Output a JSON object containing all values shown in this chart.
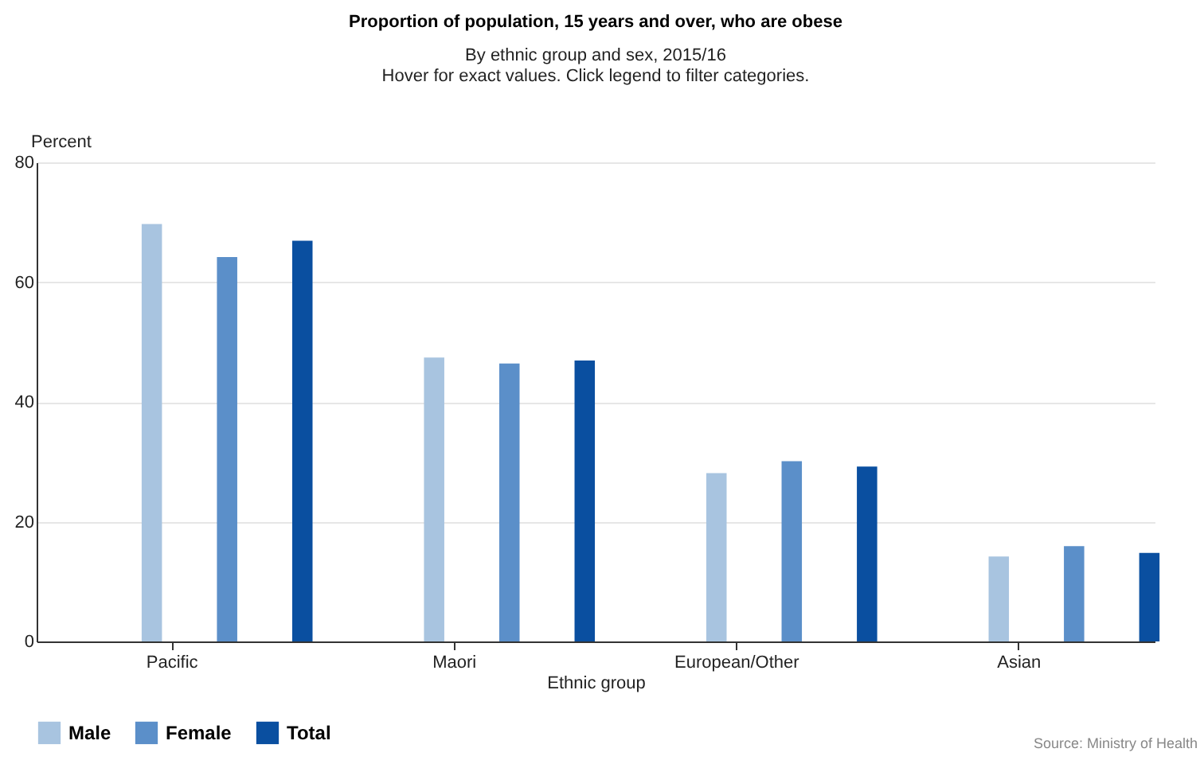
{
  "chart_data": {
    "type": "bar",
    "title": "Proportion of population, 15 years and over, who are obese",
    "subtitle": "By ethnic group and sex, 2015/16",
    "annotations": [
      "Hover for exact values. Click legend to filter categories.",
      "Source: Ministry of Health"
    ],
    "xlabel": "Ethnic group",
    "ylabel": "Percent",
    "categories": [
      "Pacific",
      "Maori",
      "European/Other",
      "Asian"
    ],
    "series": [
      {
        "name": "Male",
        "color": "#a8c4e0",
        "values": [
          69.7,
          47.4,
          28.1,
          14.2
        ]
      },
      {
        "name": "Female",
        "color": "#5b8fc9",
        "values": [
          64.2,
          46.4,
          30.1,
          15.9
        ]
      },
      {
        "name": "Total",
        "color": "#0a4fa0",
        "values": [
          66.9,
          46.9,
          29.2,
          14.8
        ]
      }
    ],
    "ylim": [
      0,
      80
    ],
    "yticks": [
      0,
      20,
      40,
      60,
      80
    ],
    "grid": "y",
    "legend": "bottom"
  }
}
